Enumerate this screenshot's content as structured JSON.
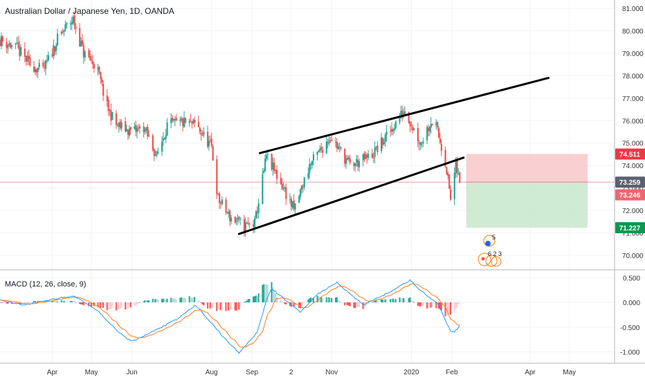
{
  "header": {
    "title": "Australian Dollar / Japanese Yen, 1D, OANDA"
  },
  "macd": {
    "title": "MACD (12, 26, close, 9)"
  },
  "colors": {
    "up": "#26a69a",
    "down": "#ef5350",
    "grid": "#f0f3fa",
    "trendline": "#000000",
    "price_line": "#e5a0a5",
    "stop_zone": "#f9c7c9",
    "target_zone": "#c8e8cc",
    "macd_line": "#2196f3",
    "signal_line": "#ff7a1a",
    "stop_badge": "#f23645",
    "price_badge_a": "#5a6270",
    "price_badge_b": "#f06570",
    "target_badge": "#089950"
  },
  "price_axis": {
    "ticks": [
      "81.000",
      "80.000",
      "79.000",
      "78.000",
      "77.000",
      "76.000",
      "75.000",
      "74.000",
      "73.000",
      "72.000",
      "71.000",
      "70.000"
    ],
    "tick_values": [
      81,
      80,
      79,
      78,
      77,
      76,
      75,
      74,
      73,
      72,
      71,
      70
    ]
  },
  "macd_axis": {
    "ticks": [
      "0.500",
      "0.000",
      "-0.500",
      "-1.000"
    ],
    "tick_values": [
      0.5,
      0,
      -0.5,
      -1
    ]
  },
  "time_axis": {
    "labels": [
      "Apr",
      "May",
      "Jun",
      "Aug",
      "Sep",
      "2",
      "Nov",
      "2020",
      "Feb",
      "Apr",
      "May"
    ]
  },
  "badges": {
    "stop": "74.511",
    "current": "73.259",
    "last": "73.246",
    "target": "71.227"
  },
  "events": {
    "upper_count": "5",
    "lower_count": "6 2 3"
  },
  "chart_data": {
    "type": "candlestick",
    "title": "Australian Dollar / Japanese Yen, 1D, OANDA",
    "ylim": [
      69.5,
      81.3
    ],
    "x_range": [
      "2019-02-20",
      "2020-05-31"
    ],
    "close_anchors": [
      [
        "2019-02-20",
        79.6
      ],
      [
        "2019-03-05",
        79.2
      ],
      [
        "2019-03-15",
        78.5
      ],
      [
        "2019-03-25",
        78.2
      ],
      [
        "2019-04-05",
        79.6
      ],
      [
        "2019-04-12",
        80.2
      ],
      [
        "2019-04-17",
        80.5
      ],
      [
        "2019-04-25",
        79.0
      ],
      [
        "2019-05-05",
        78.4
      ],
      [
        "2019-05-13",
        76.6
      ],
      [
        "2019-05-20",
        75.8
      ],
      [
        "2019-06-01",
        75.5
      ],
      [
        "2019-06-10",
        75.7
      ],
      [
        "2019-06-20",
        74.4
      ],
      [
        "2019-06-28",
        75.8
      ],
      [
        "2019-07-10",
        75.9
      ],
      [
        "2019-07-20",
        75.8
      ],
      [
        "2019-08-01",
        74.8
      ],
      [
        "2019-08-06",
        72.5
      ],
      [
        "2019-08-15",
        71.7
      ],
      [
        "2019-08-26",
        71.3
      ],
      [
        "2019-09-03",
        71.4
      ],
      [
        "2019-09-12",
        74.4
      ],
      [
        "2019-09-25",
        73.0
      ],
      [
        "2019-10-03",
        72.0
      ],
      [
        "2019-10-15",
        74.0
      ],
      [
        "2019-10-31",
        75.3
      ],
      [
        "2019-11-15",
        74.0
      ],
      [
        "2019-12-01",
        74.4
      ],
      [
        "2019-12-12",
        75.2
      ],
      [
        "2019-12-27",
        76.5
      ],
      [
        "2020-01-03",
        75.6
      ],
      [
        "2020-01-08",
        75.0
      ],
      [
        "2020-01-16",
        76.0
      ],
      [
        "2020-01-20",
        75.7
      ],
      [
        "2020-01-27",
        74.2
      ],
      [
        "2020-01-31",
        72.5
      ],
      [
        "2020-02-04",
        74.0
      ],
      [
        "2020-02-07",
        73.25
      ]
    ],
    "trendlines": [
      {
        "name": "upper channel",
        "from": [
          "2019-09-07",
          74.55
        ],
        "to": [
          "2020-04-15",
          77.9
        ]
      },
      {
        "name": "lower channel",
        "from": [
          "2019-08-22",
          70.95
        ],
        "to": [
          "2020-02-10",
          74.35
        ]
      }
    ],
    "horizontal_levels": {
      "current_price": 73.259,
      "last_close": 73.246
    },
    "position": {
      "type": "short",
      "entry": 73.259,
      "stop": 74.511,
      "target": 71.227,
      "from": "2020-02-12",
      "to": "2020-05-15"
    },
    "macd": {
      "params": "12, 26, close, 9",
      "ylim": [
        -1.08,
        0.6
      ],
      "macd_anchors": [
        [
          "2019-02-20",
          0.05
        ],
        [
          "2019-03-10",
          -0.05
        ],
        [
          "2019-04-10",
          0.1
        ],
        [
          "2019-04-18",
          0.13
        ],
        [
          "2019-05-05",
          -0.15
        ],
        [
          "2019-05-20",
          -0.55
        ],
        [
          "2019-06-01",
          -0.8
        ],
        [
          "2019-06-20",
          -0.55
        ],
        [
          "2019-07-05",
          -0.35
        ],
        [
          "2019-07-20",
          -0.05
        ],
        [
          "2019-08-10",
          -0.7
        ],
        [
          "2019-08-22",
          -1.02
        ],
        [
          "2019-09-05",
          -0.6
        ],
        [
          "2019-09-15",
          0.3
        ],
        [
          "2019-10-08",
          -0.2
        ],
        [
          "2019-10-20",
          0.15
        ],
        [
          "2019-11-05",
          0.4
        ],
        [
          "2019-11-25",
          -0.05
        ],
        [
          "2019-12-15",
          0.2
        ],
        [
          "2019-12-31",
          0.45
        ],
        [
          "2020-01-12",
          0.15
        ],
        [
          "2020-01-22",
          -0.05
        ],
        [
          "2020-02-01",
          -0.65
        ],
        [
          "2020-02-07",
          -0.48
        ]
      ]
    }
  }
}
